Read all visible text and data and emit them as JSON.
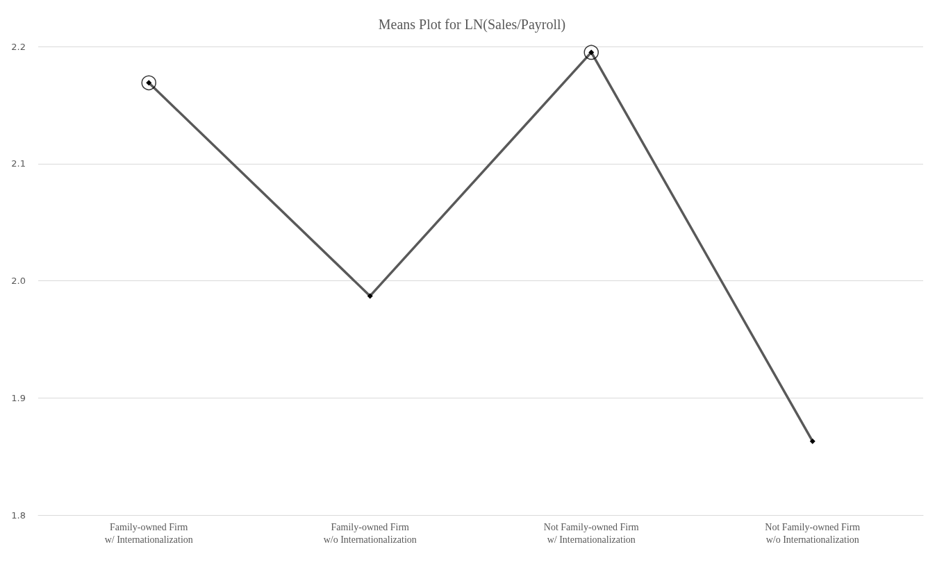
{
  "chart_data": {
    "type": "line",
    "title": "Means Plot for LN(Sales/Payroll)",
    "categories": [
      "Family-owned Firm\nw/ Internationalization",
      "Family-owned Firm\nw/o Internationalization",
      "Not Family-owned Firm\nw/ Internationalization",
      "Not Family-owned Firm\nw/o Internationalization"
    ],
    "series": [
      {
        "color": "#595959",
        "values": [
          2.169,
          1.987,
          2.195,
          1.863
        ],
        "marker": "diamond"
      },
      {
        "type": "scatter",
        "color": "#000000",
        "values": [
          2.169,
          null,
          2.195,
          null
        ],
        "marker": "circle"
      }
    ],
    "ylim": [
      1.8,
      2.2
    ],
    "yticks": [
      1.8,
      1.9,
      {
        "value": 2,
        "label": "2.0"
      },
      2.1,
      2.2
    ],
    "grid": "y"
  }
}
